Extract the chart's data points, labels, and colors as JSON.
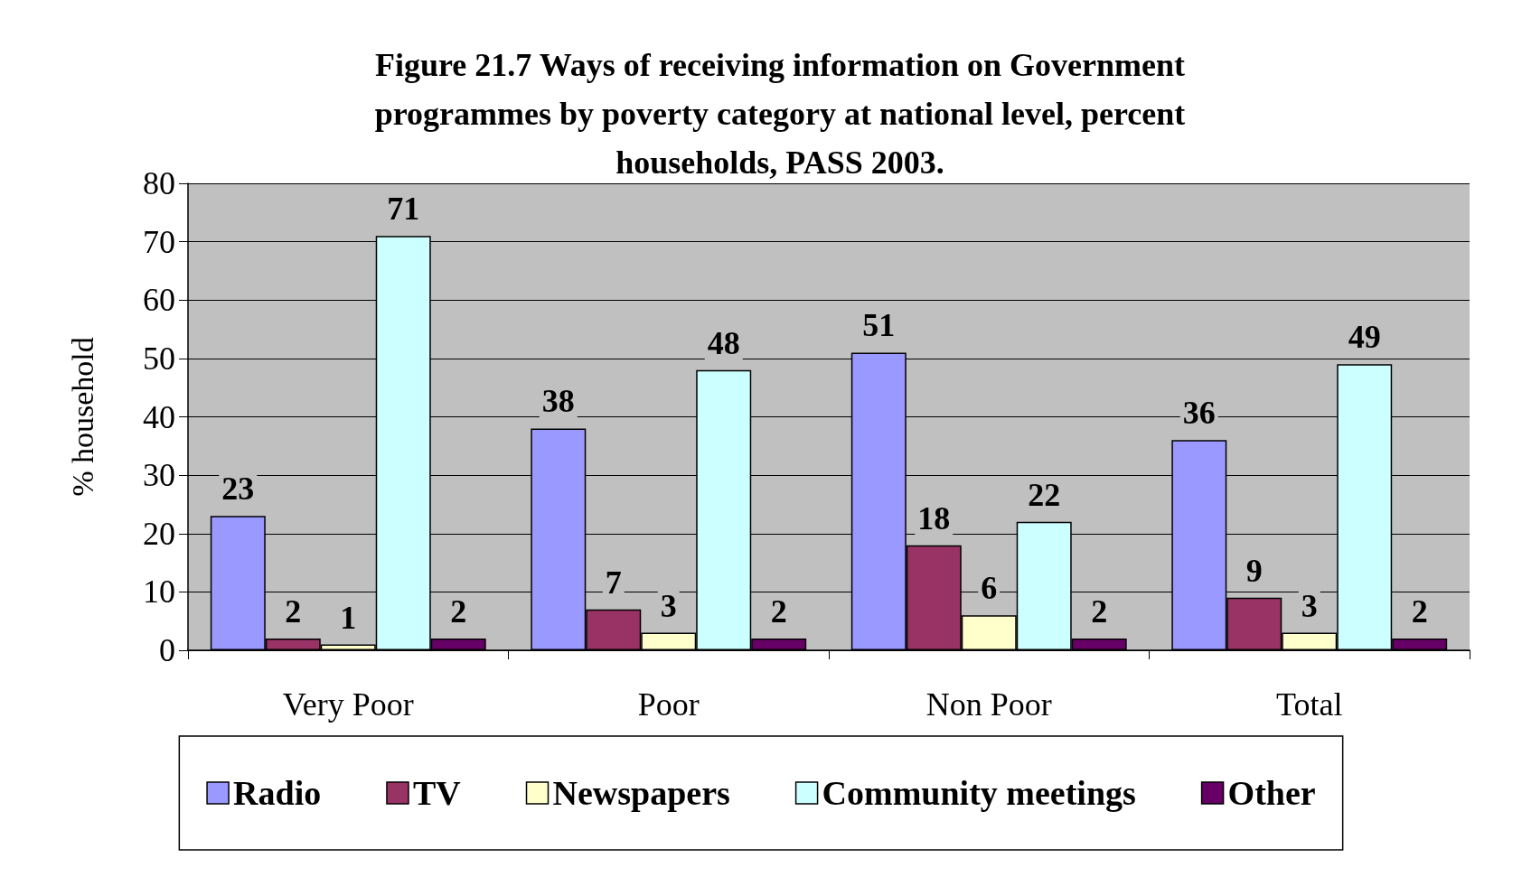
{
  "chart_data": {
    "type": "bar",
    "title": "Figure 21.7 Ways of receiving information on Government\nprogrammes by poverty category at national level, percent\nhouseholds, PASS 2003.",
    "ylabel": "% household",
    "categories": [
      "Very Poor",
      "Poor",
      "Non Poor",
      "Total"
    ],
    "series": [
      {
        "name": "Radio",
        "color": "#9999ff",
        "values": [
          23,
          38,
          51,
          36
        ]
      },
      {
        "name": "TV",
        "color": "#993366",
        "values": [
          2,
          7,
          18,
          9
        ]
      },
      {
        "name": "Newspapers",
        "color": "#ffffcc",
        "values": [
          1,
          3,
          6,
          3
        ]
      },
      {
        "name": "Community meetings",
        "color": "#ccffff",
        "values": [
          71,
          48,
          22,
          49
        ]
      },
      {
        "name": "Other",
        "color": "#660066",
        "values": [
          2,
          2,
          2,
          2
        ]
      }
    ],
    "ylim": [
      0,
      80
    ],
    "yticks": [
      0,
      10,
      20,
      30,
      40,
      50,
      60,
      70,
      80
    ],
    "grid": "y",
    "legend": "bottom",
    "data_labels": true
  }
}
